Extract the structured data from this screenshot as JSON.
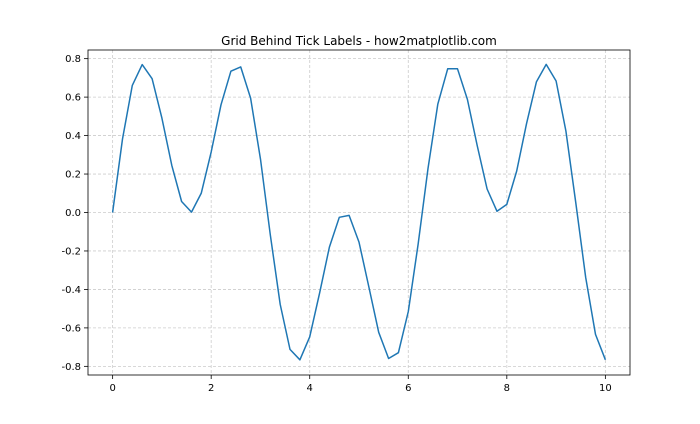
{
  "chart_data": {
    "type": "line",
    "title": "Grid Behind Tick Labels - how2matplotlib.com",
    "xlabel": "",
    "ylabel": "",
    "xlim": [
      -0.5,
      10.5
    ],
    "ylim": [
      -0.845,
      0.845
    ],
    "xticks": [
      0,
      2,
      4,
      6,
      8,
      10
    ],
    "xtick_labels": [
      "0",
      "2",
      "4",
      "6",
      "8",
      "10"
    ],
    "yticks": [
      -0.8,
      -0.6,
      -0.4,
      -0.2,
      0.0,
      0.2,
      0.4,
      0.6,
      0.8
    ],
    "ytick_labels": [
      "-0.8",
      "-0.6",
      "-0.4",
      "-0.2",
      "0.0",
      "0.2",
      "0.4",
      "0.6",
      "0.8"
    ],
    "grid": true,
    "grid_style": "dashed",
    "line_color": "#1f77b4",
    "grid_color": "#cccccc",
    "series": [
      {
        "x": [
          0,
          0.2,
          0.4,
          0.6,
          0.8,
          1.0,
          1.2,
          1.4,
          1.6,
          1.8,
          2.0,
          2.2,
          2.4,
          2.6,
          2.8,
          3.0,
          3.2,
          3.4,
          3.6,
          3.8,
          4.0,
          4.2,
          4.4,
          4.6,
          4.8,
          5.0,
          5.2,
          5.4,
          5.6,
          5.8,
          6.0,
          6.2,
          6.4,
          6.6,
          6.8,
          7.0,
          7.2,
          7.4,
          7.6,
          7.8,
          8.0,
          8.2,
          8.4,
          8.6,
          8.8,
          9.0,
          9.2,
          9.4,
          9.6,
          9.8,
          10.0
        ],
        "y": [
          0,
          0.382,
          0.661,
          0.769,
          0.696,
          0.491,
          0.245,
          0.057,
          0.002,
          0.101,
          0.315,
          0.56,
          0.735,
          0.757,
          0.595,
          0.277,
          -0.116,
          -0.478,
          -0.712,
          -0.766,
          -0.647,
          -0.419,
          -0.18,
          -0.025,
          -0.015,
          -0.154,
          -0.388,
          -0.623,
          -0.759,
          -0.729,
          -0.515,
          -0.166,
          0.229,
          0.563,
          0.747,
          0.747,
          0.588,
          0.346,
          0.122,
          0.006,
          0.042,
          0.216,
          0.461,
          0.679,
          0.77,
          0.684,
          0.424,
          0.05,
          -0.338,
          -0.634,
          -0.766
        ]
      }
    ]
  }
}
